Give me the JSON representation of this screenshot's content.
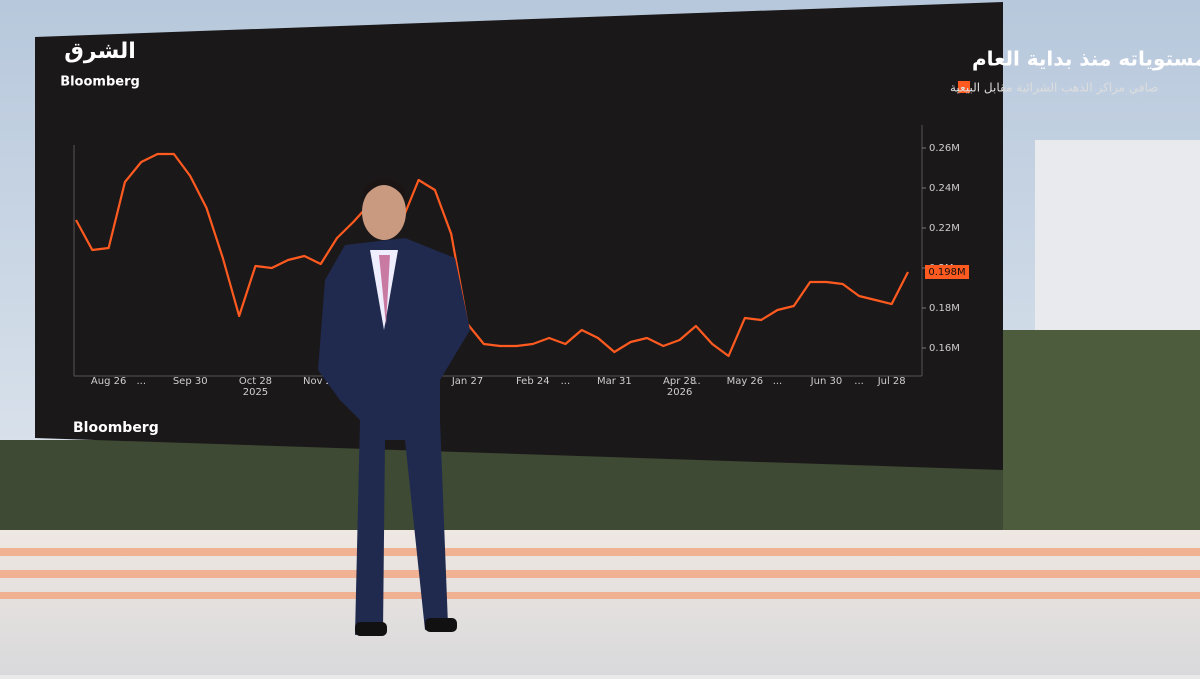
{
  "chart_data": {
    "type": "line",
    "brand": {
      "name": "الشرق",
      "partner": "Bloomberg"
    },
    "title": "صافي المراكز الشرائية للذهب يقفز لأعلى مستوياته منذ بداية العام",
    "source": "Bloomberg",
    "categories": [
      null,
      null,
      "Aug 26",
      null,
      "...",
      null,
      null,
      "Sep 30",
      null,
      null,
      null,
      "Oct 28",
      null,
      null,
      null,
      "Nov 25",
      null,
      null,
      null,
      null,
      null,
      null,
      null,
      null,
      "Jan 27",
      null,
      null,
      null,
      "Feb 24",
      null,
      "...",
      null,
      null,
      "Mar 31",
      null,
      null,
      null,
      "Apr 28",
      "...",
      null,
      null,
      "May 26",
      null,
      "...",
      null,
      null,
      "Jun 30",
      null,
      "...",
      null,
      "Jul 28",
      null
    ],
    "x_year_labels": [
      "2025",
      "2026"
    ],
    "series": [
      {
        "name": "صافي مراكز الذهب الشرائية مقابل البيعية",
        "color": "#ff5a1f",
        "values": [
          0.224,
          0.209,
          0.21,
          0.243,
          0.253,
          0.257,
          0.257,
          0.246,
          0.23,
          0.205,
          0.176,
          0.201,
          0.2,
          0.204,
          0.206,
          0.202,
          0.215,
          0.223,
          0.232,
          0.226,
          0.224,
          0.244,
          0.239,
          0.217,
          0.172,
          0.162,
          0.161,
          0.161,
          0.162,
          0.165,
          0.162,
          0.169,
          0.165,
          0.158,
          0.163,
          0.165,
          0.161,
          0.164,
          0.171,
          0.162,
          0.156,
          0.175,
          0.174,
          0.179,
          0.181,
          0.193,
          0.193,
          0.192,
          0.186,
          0.184,
          0.182,
          0.198
        ],
        "last_value_label": "0.198M"
      }
    ],
    "ylim": [
      0.145,
      0.27
    ],
    "yticks": [
      {
        "value": 0.16,
        "label": "0.16M"
      },
      {
        "value": 0.18,
        "label": "0.18M"
      },
      {
        "value": 0.2,
        "label": "0.2M"
      },
      {
        "value": 0.22,
        "label": "0.22M"
      },
      {
        "value": 0.24,
        "label": "0.24M"
      },
      {
        "value": 0.26,
        "label": "0.26M"
      }
    ]
  }
}
